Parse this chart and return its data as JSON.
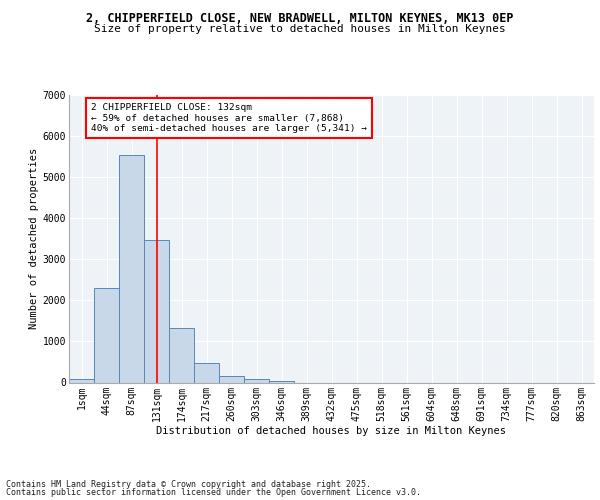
{
  "title_line1": "2, CHIPPERFIELD CLOSE, NEW BRADWELL, MILTON KEYNES, MK13 0EP",
  "title_line2": "Size of property relative to detached houses in Milton Keynes",
  "xlabel": "Distribution of detached houses by size in Milton Keynes",
  "ylabel": "Number of detached properties",
  "bar_labels": [
    "1sqm",
    "44sqm",
    "87sqm",
    "131sqm",
    "174sqm",
    "217sqm",
    "260sqm",
    "303sqm",
    "346sqm",
    "389sqm",
    "432sqm",
    "475sqm",
    "518sqm",
    "561sqm",
    "604sqm",
    "648sqm",
    "691sqm",
    "734sqm",
    "777sqm",
    "820sqm",
    "863sqm"
  ],
  "bar_values": [
    80,
    2300,
    5550,
    3470,
    1330,
    470,
    165,
    80,
    40,
    0,
    0,
    0,
    0,
    0,
    0,
    0,
    0,
    0,
    0,
    0,
    0
  ],
  "bar_color": "#c8d8e8",
  "bar_edgecolor": "#5588bb",
  "ylim": [
    0,
    7000
  ],
  "yticks": [
    0,
    1000,
    2000,
    3000,
    4000,
    5000,
    6000,
    7000
  ],
  "red_line_x": 3.0,
  "annotation_text": "2 CHIPPERFIELD CLOSE: 132sqm\n← 59% of detached houses are smaller (7,868)\n40% of semi-detached houses are larger (5,341) →",
  "footer_line1": "Contains HM Land Registry data © Crown copyright and database right 2025.",
  "footer_line2": "Contains public sector information licensed under the Open Government Licence v3.0.",
  "background_color": "#eef3f8",
  "grid_color": "#ffffff",
  "fig_background": "#ffffff",
  "title_fontsize": 8.5,
  "subtitle_fontsize": 8,
  "ylabel_fontsize": 7.5,
  "xlabel_fontsize": 7.5,
  "tick_fontsize": 7,
  "annot_fontsize": 6.8,
  "footer_fontsize": 6
}
